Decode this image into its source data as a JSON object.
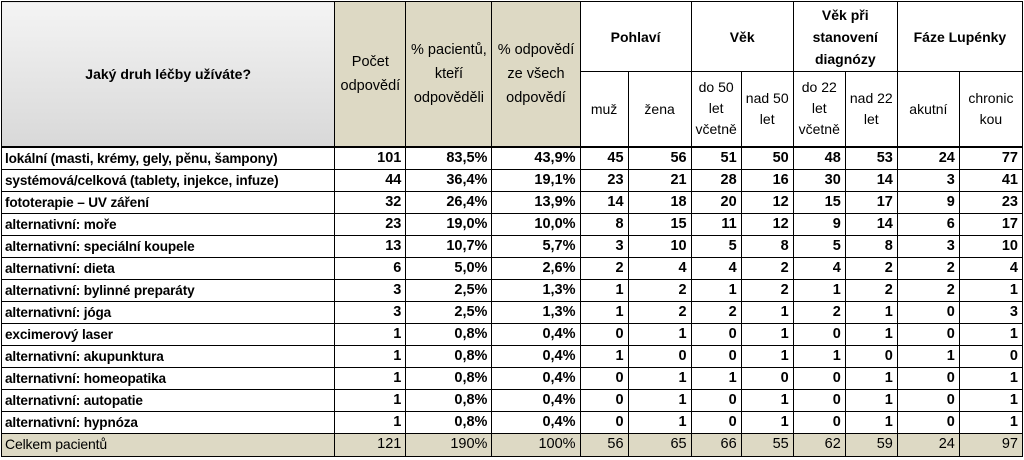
{
  "header": {
    "question": "Jaký druh léčby užíváte?",
    "count": "Počet odpovědí",
    "pct_patients": "% pacientů, kteří odpověděli",
    "pct_answers": "% odpovědí ze všech odpovědí",
    "group_gender": "Pohlaví",
    "group_age": "Věk",
    "group_age_diag": "Věk při stanovení diagnózy",
    "group_phase": "Fáze Lupénky",
    "sub_male": "muž",
    "sub_female": "žena",
    "sub_age_under50": "do 50 let včetně",
    "sub_age_over50": "nad 50 let",
    "sub_diag_under22": "do 22 let včetně",
    "sub_diag_over22": "nad 22 let",
    "sub_acute": "akutní",
    "sub_chronic": "chronic kou"
  },
  "rows": [
    [
      "lokální (masti, krémy, gely, pěnu, šampony)",
      "101",
      "83,5%",
      "43,9%",
      "45",
      "56",
      "51",
      "50",
      "48",
      "53",
      "24",
      "77"
    ],
    [
      "systémová/celková  (tablety, injekce, infuze)",
      "44",
      "36,4%",
      "19,1%",
      "23",
      "21",
      "28",
      "16",
      "30",
      "14",
      "3",
      "41"
    ],
    [
      "fototerapie – UV záření",
      "32",
      "26,4%",
      "13,9%",
      "14",
      "18",
      "20",
      "12",
      "15",
      "17",
      "9",
      "23"
    ],
    [
      "alternativní: moře",
      "23",
      "19,0%",
      "10,0%",
      "8",
      "15",
      "11",
      "12",
      "9",
      "14",
      "6",
      "17"
    ],
    [
      "alternativní: speciální koupele",
      "13",
      "10,7%",
      "5,7%",
      "3",
      "10",
      "5",
      "8",
      "5",
      "8",
      "3",
      "10"
    ],
    [
      "alternativní: dieta",
      "6",
      "5,0%",
      "2,6%",
      "2",
      "4",
      "4",
      "2",
      "4",
      "2",
      "2",
      "4"
    ],
    [
      "alternativní: bylinné preparáty",
      "3",
      "2,5%",
      "1,3%",
      "1",
      "2",
      "1",
      "2",
      "1",
      "2",
      "2",
      "1"
    ],
    [
      "alternativní: jóga",
      "3",
      "2,5%",
      "1,3%",
      "1",
      "2",
      "2",
      "1",
      "2",
      "1",
      "0",
      "3"
    ],
    [
      "excimerový laser",
      "1",
      "0,8%",
      "0,4%",
      "0",
      "1",
      "0",
      "1",
      "0",
      "1",
      "0",
      "1"
    ],
    [
      "alternativní: akupunktura",
      "1",
      "0,8%",
      "0,4%",
      "1",
      "0",
      "0",
      "1",
      "1",
      "0",
      "1",
      "0"
    ],
    [
      "alternativní: homeopatika",
      "1",
      "0,8%",
      "0,4%",
      "0",
      "1",
      "1",
      "0",
      "0",
      "1",
      "0",
      "1"
    ],
    [
      "alternativní: autopatie",
      "1",
      "0,8%",
      "0,4%",
      "0",
      "1",
      "0",
      "1",
      "0",
      "1",
      "0",
      "1"
    ],
    [
      "alternativní: hypnóza",
      "1",
      "0,8%",
      "0,4%",
      "0",
      "1",
      "0",
      "1",
      "0",
      "1",
      "0",
      "1"
    ]
  ],
  "total": [
    "Celkem pacientů",
    "121",
    "190%",
    "100%",
    "56",
    "65",
    "66",
    "55",
    "62",
    "59",
    "24",
    "97"
  ]
}
